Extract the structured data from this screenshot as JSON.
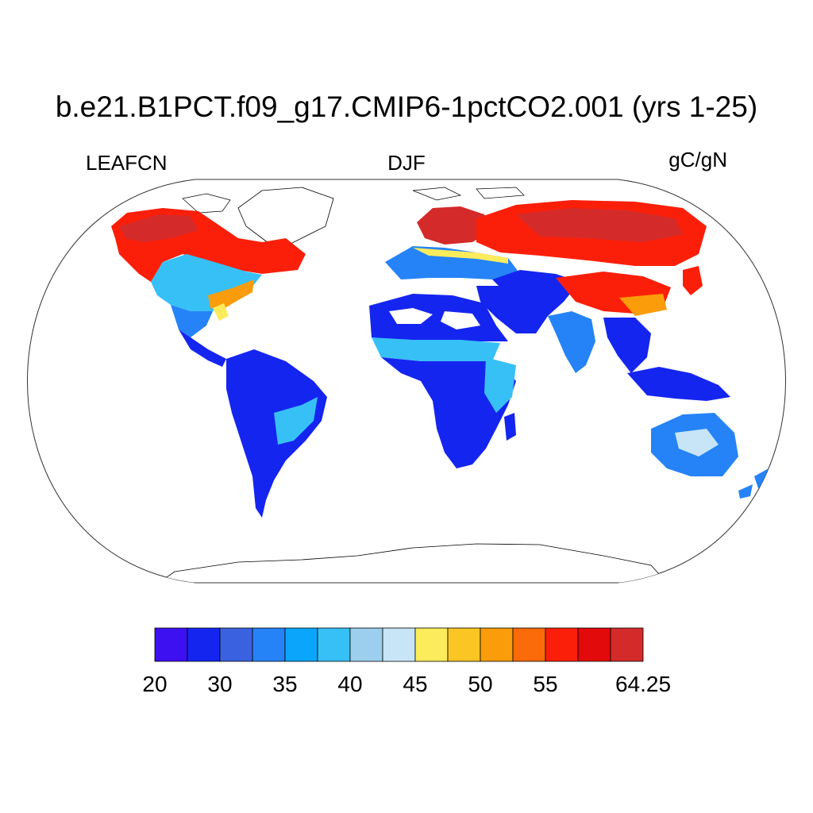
{
  "header": {
    "title": "b.e21.B1PCT.f09_g17.CMIP6-1pctCO2.001 (yrs 1-25)",
    "variable": "LEAFCN",
    "season": "DJF",
    "units": "gC/gN"
  },
  "colorbar": {
    "colors": [
      "#3d10f2",
      "#1525f0",
      "#3a62e0",
      "#2583f7",
      "#0ba6fc",
      "#37c0f5",
      "#9bcfed",
      "#c7e5f7",
      "#fcec5c",
      "#fbc523",
      "#fb9c0a",
      "#fb6b0a",
      "#fb1f0a",
      "#e20a0a",
      "#d42a2a"
    ],
    "tick_labels": [
      {
        "label": "20",
        "index": 0
      },
      {
        "label": "30",
        "index": 1
      },
      {
        "label": "35",
        "index": 2
      },
      {
        "label": "40",
        "index": 3
      },
      {
        "label": "45",
        "index": 4
      },
      {
        "label": "50",
        "index": 5
      },
      {
        "label": "55",
        "index": 6
      },
      {
        "label": "64.25",
        "index": 7
      }
    ]
  },
  "map_colors": {
    "ocean": "#ffffff",
    "outline": "#000000",
    "deep_blue": "#1525f0",
    "blue": "#2583f7",
    "light_blue": "#37c0f5",
    "pale": "#c7e5f7",
    "yellow": "#fcec5c",
    "orange": "#fb9c0a",
    "red": "#fb1f0a",
    "dark_red": "#d42a2a"
  }
}
